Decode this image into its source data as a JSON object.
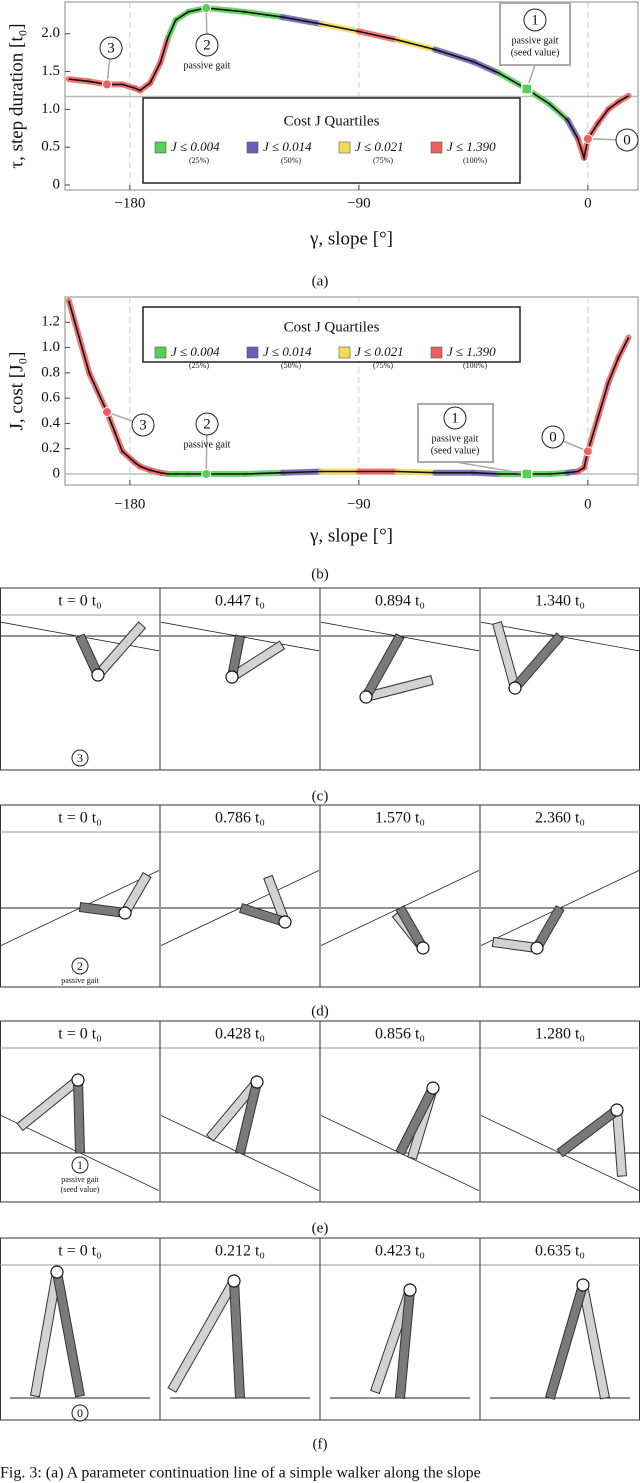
{
  "chart_data": [
    {
      "type": "line",
      "caption": "(a)",
      "x_label": "γ, slope [°]",
      "y_label": "τ, step duration [t₀]",
      "x": [
        -204,
        -196,
        -189,
        -183,
        -178,
        -176,
        -172,
        -168,
        -165,
        -162,
        -157,
        -150,
        -135,
        -120,
        -105,
        -90,
        -75,
        -60,
        -45,
        -35,
        -24,
        -15,
        -8,
        -4,
        -1.5,
        0,
        4,
        8,
        12,
        16
      ],
      "series": [
        {
          "color": "#111111",
          "values": [
            1.4,
            1.37,
            1.33,
            1.33,
            1.28,
            1.25,
            1.35,
            1.62,
            1.95,
            2.18,
            2.29,
            2.34,
            2.29,
            2.22,
            2.13,
            2.03,
            1.92,
            1.79,
            1.63,
            1.48,
            1.27,
            1.07,
            0.86,
            0.62,
            0.36,
            0.61,
            0.82,
            1.0,
            1.1,
            1.18
          ]
        }
      ],
      "quartile": [
        3,
        3,
        3,
        3,
        3,
        3,
        3,
        3,
        0,
        0,
        0,
        0,
        0,
        1,
        2,
        3,
        2,
        1,
        1,
        0,
        0,
        0,
        1,
        3,
        3,
        3,
        3,
        3,
        3,
        3
      ],
      "xlim": [
        -205.5,
        19.7
      ],
      "ylim": [
        -0.066,
        2.42
      ],
      "xticks": [
        {
          "value": -180,
          "label": "−180"
        },
        {
          "value": -90,
          "label": "−90"
        },
        0
      ],
      "yticks": [
        0,
        0.5,
        {
          "value": 1,
          "label": "1.0"
        },
        1.5,
        {
          "value": 2,
          "label": "2.0"
        }
      ],
      "hline": 1.17,
      "legend": {
        "title": "Cost J Quartiles",
        "entries": [
          {
            "label": "J ≤ 0.004",
            "note": "(25%)",
            "color": "#55d055"
          },
          {
            "label": "J ≤ 0.014",
            "note": "(50%)",
            "color": "#6a5fb8"
          },
          {
            "label": "J ≤ 0.021",
            "note": "(75%)",
            "color": "#f2dc55"
          },
          {
            "label": "J ≤ 1.390",
            "note": "(100%)",
            "color": "#ef5f5f"
          }
        ]
      },
      "points": [
        {
          "label": "3",
          "x": -189,
          "y": 1.33,
          "color": "#ef5f5f"
        },
        {
          "label": "2",
          "text": "passive gait",
          "x": -150,
          "y": 2.34,
          "color": "#55d055"
        },
        {
          "label": "1",
          "text": "passive gait",
          "note": "(seed value)",
          "x": -24,
          "y": 1.27,
          "color": "#55d055",
          "shape": "square"
        },
        {
          "label": "0",
          "x": 0,
          "y": 0.61,
          "color": "#ef5f5f"
        }
      ]
    },
    {
      "type": "line",
      "caption": "(b)",
      "x_label": "γ, slope [°]",
      "y_label": "J, cost [J₀]",
      "x": [
        -204,
        -196,
        -189,
        -183,
        -178,
        -176,
        -172,
        -168,
        -165,
        -162,
        -157,
        -150,
        -135,
        -120,
        -105,
        -90,
        -75,
        -60,
        -45,
        -35,
        -24,
        -15,
        -8,
        -4,
        -1.5,
        0,
        4,
        8,
        12,
        16
      ],
      "series": [
        {
          "color": "#111111",
          "values": [
            1.37,
            0.8,
            0.49,
            0.18,
            0.09,
            0.06,
            0.03,
            0.01,
            0,
            0,
            0,
            0,
            0,
            0.01,
            0.02,
            0.02,
            0.02,
            0.01,
            0.01,
            0,
            0,
            0,
            0.01,
            0.02,
            0.05,
            0.18,
            0.45,
            0.72,
            0.92,
            1.08
          ]
        }
      ],
      "quartile": [
        3,
        3,
        3,
        3,
        3,
        3,
        3,
        3,
        0,
        0,
        0,
        0,
        0,
        1,
        2,
        3,
        2,
        1,
        1,
        0,
        0,
        0,
        1,
        3,
        3,
        3,
        3,
        3,
        3,
        3
      ],
      "xlim": [
        -205.5,
        19.7
      ],
      "ylim": [
        -0.087,
        1.4
      ],
      "xticks": [
        {
          "value": -180,
          "label": "−180"
        },
        {
          "value": -90,
          "label": "−90"
        },
        0
      ],
      "yticks": [
        0,
        0.2,
        0.4,
        0.6,
        0.8,
        {
          "value": 1,
          "label": "1.0"
        },
        1.2
      ],
      "hline": 0,
      "legend": {
        "title": "Cost J Quartiles",
        "entries": [
          {
            "label": "J ≤ 0.004",
            "note": "(25%)",
            "color": "#55d055"
          },
          {
            "label": "J ≤ 0.014",
            "note": "(50%)",
            "color": "#6a5fb8"
          },
          {
            "label": "J ≤ 0.021",
            "note": "(75%)",
            "color": "#f2dc55"
          },
          {
            "label": "J ≤ 1.390",
            "note": "(100%)",
            "color": "#ef5f5f"
          }
        ]
      },
      "points": [
        {
          "label": "3",
          "x": -189,
          "y": 0.49,
          "color": "#ef5f5f"
        },
        {
          "label": "2",
          "text": "passive gait",
          "x": -150,
          "y": 0,
          "color": "#55d055"
        },
        {
          "label": "1",
          "text": "passive gait",
          "note": "(seed value)",
          "x": -24,
          "y": 0,
          "color": "#55d055",
          "shape": "square"
        },
        {
          "label": "0",
          "x": 0,
          "y": 0.18,
          "color": "#ef5f5f"
        }
      ]
    }
  ],
  "panels": [
    {
      "caption": "(c)",
      "times": [
        "t = 0 t₀",
        "0.447 t₀",
        "0.894 t₀",
        "1.340 t₀"
      ],
      "marker": {
        "label": "3"
      }
    },
    {
      "caption": "(d)",
      "times": [
        "t = 0 t₀",
        "0.786 t₀",
        "1.570 t₀",
        "2.360 t₀"
      ],
      "marker": {
        "label": "2",
        "text": "passive gait"
      }
    },
    {
      "caption": "(e)",
      "times": [
        "t = 0 t₀",
        "0.428 t₀",
        "0.856 t₀",
        "1.280 t₀"
      ],
      "marker": {
        "label": "1",
        "text": "passive gait",
        "note": "(seed value)"
      }
    },
    {
      "caption": "(f)",
      "times": [
        "t = 0 t₀",
        "0.212 t₀",
        "0.423 t₀",
        "0.635 t₀"
      ],
      "marker": {
        "label": "0"
      }
    }
  ],
  "caption": "Fig. 3: (a) A parameter continuation line of a simple walker along the slope"
}
